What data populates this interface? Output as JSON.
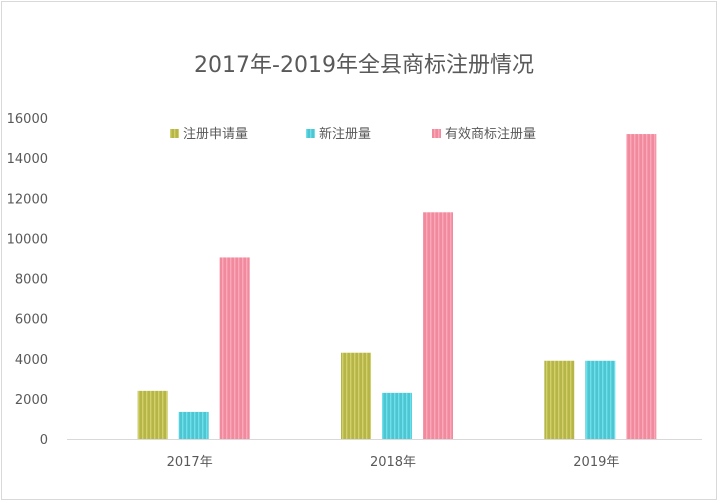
{
  "chart_data": {
    "type": "bar",
    "title": "2017年-2019年全县商标注册情况",
    "categories": [
      "2017年",
      "2018年",
      "2019年"
    ],
    "series": [
      {
        "name": "注册申请量",
        "values": [
          2400,
          4300,
          3900
        ],
        "color": "#b5b54a"
      },
      {
        "name": "新注册量",
        "values": [
          1350,
          2300,
          3900
        ],
        "color": "#4ec5d1"
      },
      {
        "name": "有效商标注册量",
        "values": [
          9050,
          11300,
          15200
        ],
        "color": "#f08b9e"
      }
    ],
    "y_ticks": [
      "0",
      "2000",
      "4000",
      "6000",
      "8000",
      "10000",
      "12000",
      "14000",
      "16000"
    ],
    "ylim": [
      0,
      16000
    ],
    "legend_position": "top",
    "grid": false,
    "bar_pattern": "vertical-stripes"
  }
}
